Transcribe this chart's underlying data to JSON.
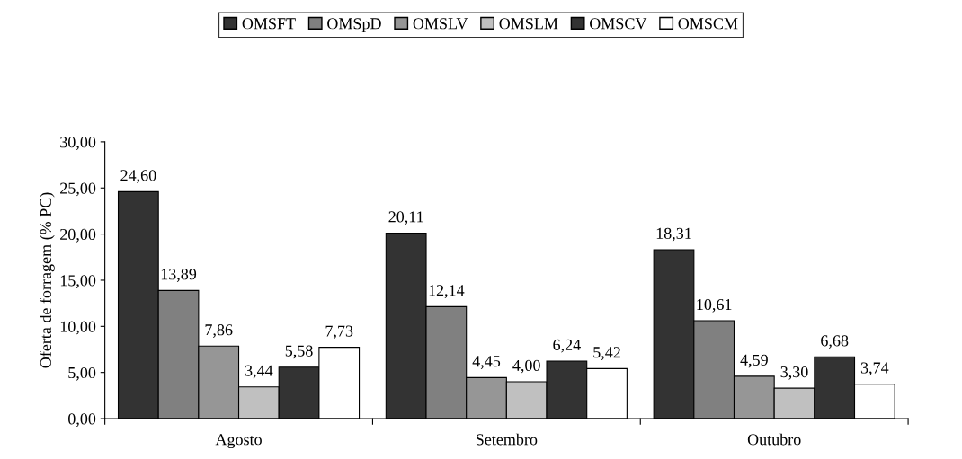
{
  "chart_data": {
    "type": "bar",
    "ylabel": "Oferta de forragem (% PC)",
    "categories": [
      "Agosto",
      "Setembro",
      "Outubro"
    ],
    "series": [
      {
        "name": "OMSFT",
        "color": "#333333",
        "values": [
          24.6,
          20.11,
          18.31
        ],
        "value_labels": [
          "24,60",
          "20,11",
          "18,31"
        ]
      },
      {
        "name": "OMSpD",
        "color": "#808080",
        "values": [
          13.89,
          12.14,
          10.61
        ],
        "value_labels": [
          "13,89",
          "12,14",
          "10,61"
        ]
      },
      {
        "name": "OMSLV",
        "color": "#969696",
        "values": [
          7.86,
          4.45,
          4.59
        ],
        "value_labels": [
          "7,86",
          "4,45",
          "4,59"
        ]
      },
      {
        "name": "OMSLM",
        "color": "#c0c0c0",
        "values": [
          3.44,
          4.0,
          3.3
        ],
        "value_labels": [
          "3,44",
          "4,00",
          "3,30"
        ]
      },
      {
        "name": "OMSCV",
        "color": "#333333",
        "values": [
          5.58,
          6.24,
          6.68
        ],
        "value_labels": [
          "5,58",
          "6,24",
          "6,68"
        ]
      },
      {
        "name": "OMSCM",
        "color": "#ffffff",
        "values": [
          7.73,
          5.42,
          3.74
        ],
        "value_labels": [
          "7,73",
          "5,42",
          "3,74"
        ]
      }
    ],
    "ylim": [
      0,
      30
    ],
    "yticks": [
      {
        "value": 0,
        "label": "0,00"
      },
      {
        "value": 5,
        "label": "5,00"
      },
      {
        "value": 10,
        "label": "10,00"
      },
      {
        "value": 15,
        "label": "15,00"
      },
      {
        "value": 20,
        "label": "20,00"
      },
      {
        "value": 25,
        "label": "25,00"
      },
      {
        "value": 30,
        "label": "30,00"
      }
    ],
    "grid": false,
    "legend": "top"
  }
}
